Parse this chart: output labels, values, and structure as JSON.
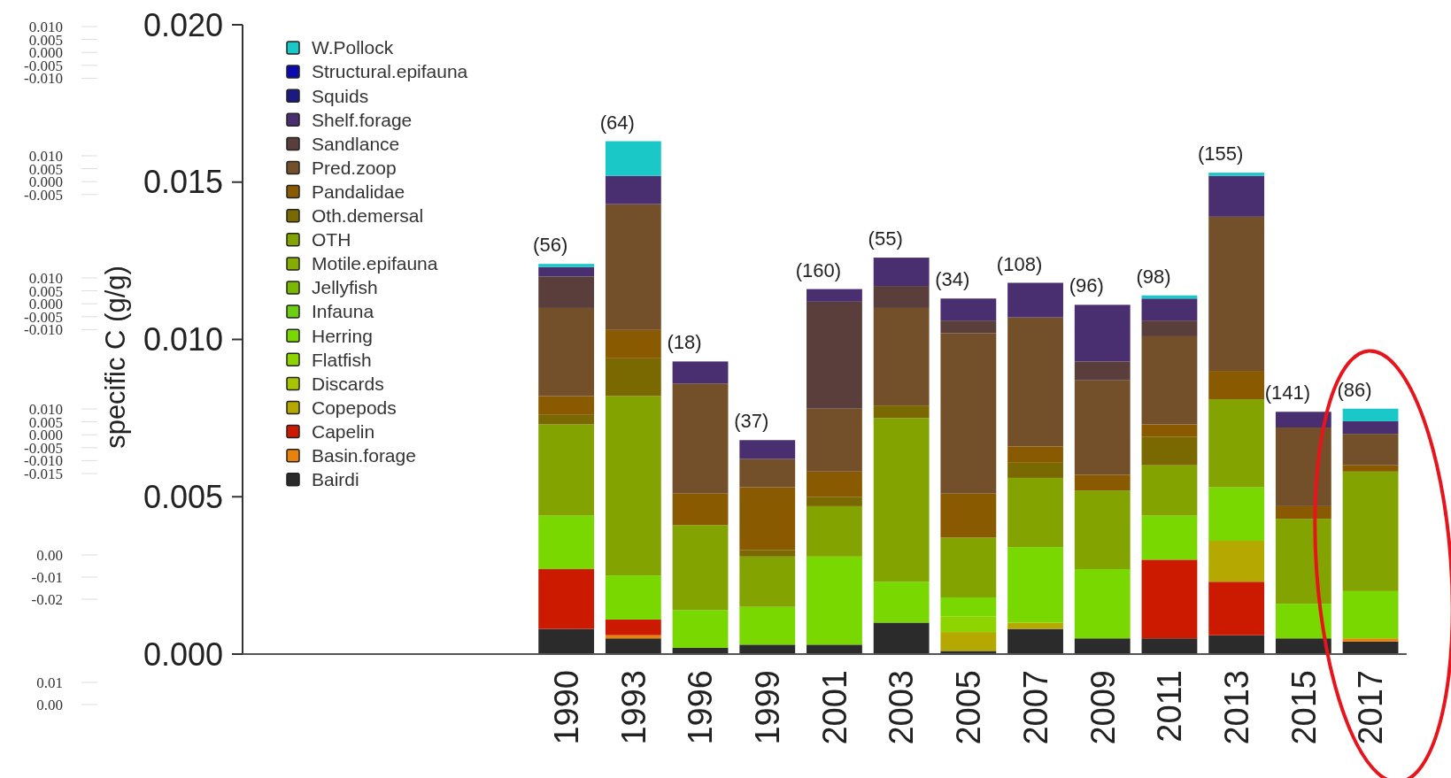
{
  "chart_data": {
    "type": "bar",
    "stacked": true,
    "ylabel": "specific C (g/g)",
    "categories": [
      null,
      null,
      null,
      null,
      "1990",
      "1993",
      "1996",
      "1999",
      "2001",
      "2003",
      "2005",
      "2007",
      "2009",
      "2011",
      "2013",
      "2015",
      "2017"
    ],
    "ylim": [
      0,
      0.02
    ],
    "yticks": [
      {
        "value": 0,
        "label": "0.000"
      },
      0.005,
      {
        "value": 0.01,
        "label": "0.010"
      },
      0.015,
      {
        "value": 0.02,
        "label": "0.020"
      }
    ],
    "legend": "top left",
    "series": [
      {
        "name": "Bairdi",
        "color": "#2b2b2b",
        "values": [
          null,
          null,
          null,
          null,
          0.0008,
          0.0005,
          0.0002,
          0.0003,
          0.0003,
          0.001,
          0.0001,
          0.0008,
          0.0005,
          0.0005,
          0.0006,
          0.0005,
          0.0004
        ]
      },
      {
        "name": "Basin.forage",
        "color": "#e8820a",
        "values": [
          null,
          null,
          null,
          null,
          0,
          0.0001,
          0,
          0,
          0,
          0,
          0,
          0,
          0,
          0,
          0,
          0,
          0.0001
        ]
      },
      {
        "name": "Capelin",
        "color": "#cc1a00",
        "values": [
          null,
          null,
          null,
          null,
          0.0019,
          0.0005,
          0,
          0,
          0,
          0,
          0,
          0,
          0,
          0.0025,
          0.0017,
          0,
          0
        ]
      },
      {
        "name": "Copepods",
        "color": "#b5a800",
        "values": [
          null,
          null,
          null,
          null,
          0,
          0,
          0,
          0,
          0,
          0,
          0.0006,
          0.0002,
          0,
          0,
          0.0013,
          0,
          0
        ]
      },
      {
        "name": "Discards",
        "color": "#a8c400",
        "values": [
          null,
          null,
          null,
          null,
          0,
          0,
          0,
          0,
          0,
          0,
          0,
          0,
          0,
          0,
          0,
          0,
          0
        ]
      },
      {
        "name": "Flatfish",
        "color": "#8ed400",
        "values": [
          null,
          null,
          null,
          null,
          0,
          0,
          0,
          0,
          0,
          0,
          0.0005,
          0,
          0,
          0,
          0,
          0,
          0
        ]
      },
      {
        "name": "Herring",
        "color": "#78d800",
        "values": [
          null,
          null,
          null,
          null,
          0.0017,
          0.0014,
          0.0012,
          0.0012,
          0.0028,
          0.0013,
          0.0006,
          0.0024,
          0.0022,
          0.0014,
          0.0017,
          0.0011,
          0.0015
        ]
      },
      {
        "name": "Infauna",
        "color": "#6ccf10",
        "values": [
          null,
          null,
          null,
          null,
          0,
          0,
          0,
          0,
          0,
          0,
          0,
          0,
          0,
          0,
          0,
          0,
          0
        ]
      },
      {
        "name": "Jellyfish",
        "color": "#7ab800",
        "values": [
          null,
          null,
          null,
          null,
          0,
          0,
          0,
          0,
          0,
          0,
          0,
          0,
          0,
          0,
          0,
          0,
          0
        ]
      },
      {
        "name": "Motile.epifauna",
        "color": "#86ac00",
        "values": [
          null,
          null,
          null,
          null,
          0,
          0,
          0,
          0,
          0,
          0,
          0,
          0,
          0,
          0,
          0,
          0,
          0
        ]
      },
      {
        "name": "OTH",
        "color": "#82a300",
        "values": [
          null,
          null,
          null,
          null,
          0.0029,
          0.0057,
          0.0027,
          0.0016,
          0.0016,
          0.0052,
          0.0019,
          0.0022,
          0.0025,
          0.0016,
          0.0028,
          0.0027,
          0.0038
        ]
      },
      {
        "name": "Oth.demersal",
        "color": "#7a6800",
        "values": [
          null,
          null,
          null,
          null,
          0.0003,
          0.0012,
          0,
          0.0002,
          0.0003,
          0.0004,
          0,
          0.0005,
          0,
          0.0009,
          0,
          0,
          0
        ]
      },
      {
        "name": "Pandalidae",
        "color": "#8a5a00",
        "values": [
          null,
          null,
          null,
          null,
          0.0006,
          0.0009,
          0.001,
          0.002,
          0.0008,
          0,
          0.0014,
          0.0005,
          0.0005,
          0.0004,
          0.0009,
          0.0004,
          0.0002
        ]
      },
      {
        "name": "Pred.zoop",
        "color": "#74502a",
        "values": [
          null,
          null,
          null,
          null,
          0.0028,
          0.004,
          0.0035,
          0.0009,
          0.002,
          0.0031,
          0.0051,
          0.0041,
          0.003,
          0.0028,
          0.0049,
          0.0025,
          0.001
        ]
      },
      {
        "name": "Sandlance",
        "color": "#5a3e3c",
        "values": [
          null,
          null,
          null,
          null,
          0.001,
          0,
          0,
          0,
          0.0034,
          0.0007,
          0.0004,
          0,
          0.0006,
          0.0005,
          0,
          0,
          0
        ]
      },
      {
        "name": "Shelf.forage",
        "color": "#4a2f70",
        "values": [
          null,
          null,
          null,
          null,
          0.0003,
          0.0009,
          0.0007,
          0.0006,
          0.0004,
          0.0009,
          0.0007,
          0.0011,
          0.0018,
          0.0007,
          0.0013,
          0.0005,
          0.0004
        ]
      },
      {
        "name": "Squids",
        "color": "#1a1a80",
        "values": [
          null,
          null,
          null,
          null,
          0,
          0,
          0,
          0,
          0,
          0,
          0,
          0,
          0,
          0,
          0,
          0,
          0
        ]
      },
      {
        "name": "Structural.epifauna",
        "color": "#0a0ab0",
        "values": [
          null,
          null,
          null,
          null,
          0,
          0,
          0,
          0,
          0,
          0,
          0,
          0,
          0,
          0,
          0,
          0,
          0
        ]
      },
      {
        "name": "W.Pollock",
        "color": "#1ac8c8",
        "values": [
          null,
          null,
          null,
          null,
          0.0001,
          0.0011,
          0,
          0,
          0,
          0,
          0,
          0,
          0,
          0.0001,
          0.0001,
          0,
          0.0004
        ]
      }
    ],
    "annotations": [
      {
        "text": "(56)",
        "x": "1990",
        "y": 0.0124
      },
      {
        "text": "(64)",
        "x": "1993",
        "y": 0.0163
      },
      {
        "text": "(18)",
        "x": "1996",
        "y": 0.0093
      },
      {
        "text": "(37)",
        "x": "1999",
        "y": 0.0068
      },
      {
        "text": "(160)",
        "x": "2001",
        "y": 0.0116
      },
      {
        "text": "(55)",
        "x": "2003",
        "y": 0.0126
      },
      {
        "text": "(34)",
        "x": "2005",
        "y": 0.0113
      },
      {
        "text": "(108)",
        "x": "2007",
        "y": 0.0118
      },
      {
        "text": "(96)",
        "x": "2009",
        "y": 0.0111
      },
      {
        "text": "(98)",
        "x": "2011",
        "y": 0.0114
      },
      {
        "text": "(155)",
        "x": "2013",
        "y": 0.0153
      },
      {
        "text": "(141)",
        "x": "2015",
        "y": 0.0077
      },
      {
        "text": "(86)",
        "x": "2017",
        "y": 0.0078
      },
      "0.010\n0.005\n0.000\n-0.005\n-0.010",
      "0.010\n0.005\n0.000\n-0.005",
      "0.010\n0.005\n0.000\n-0.005\n-0.010",
      "0.010\n0.005\n0.000\n-0.005\n-0.010\n-0.015",
      "0.00\n-0.01\n-0.02",
      "0.01\n0.00"
    ]
  }
}
